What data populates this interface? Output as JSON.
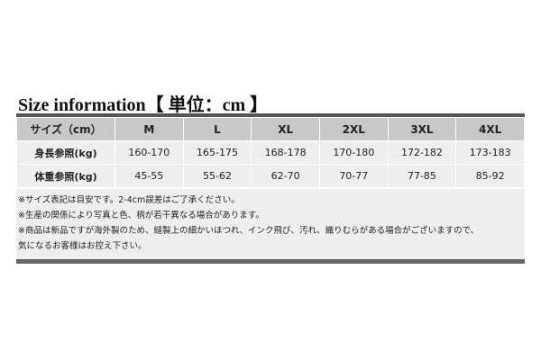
{
  "header": {
    "title": "Size information【 単位：cm 】"
  },
  "table": {
    "columns": [
      "サイズ（cm）",
      "M",
      "L",
      "XL",
      "2XL",
      "3XL",
      "4XL"
    ],
    "rows": [
      [
        "身長参照(kg)",
        "160-170",
        "165-175",
        "168-178",
        "170-180",
        "172-182",
        "173-183"
      ],
      [
        "体重参照(kg)",
        "45-55",
        "55-62",
        "62-70",
        "70-77",
        "77-85",
        "85-92"
      ]
    ]
  },
  "notes": [
    "※サイズ表記は目安です。2-4cm誤差はご了承ください。",
    "※生産の関係により写真と色、柄が若干異なる場合があります。",
    "※商品は新品ですが海外製のため、縫製上の細かいほつれ、インク飛び、汚れ、織りむらがある場合がございますので、",
    "気になるお客様はお控え下さい。"
  ]
}
